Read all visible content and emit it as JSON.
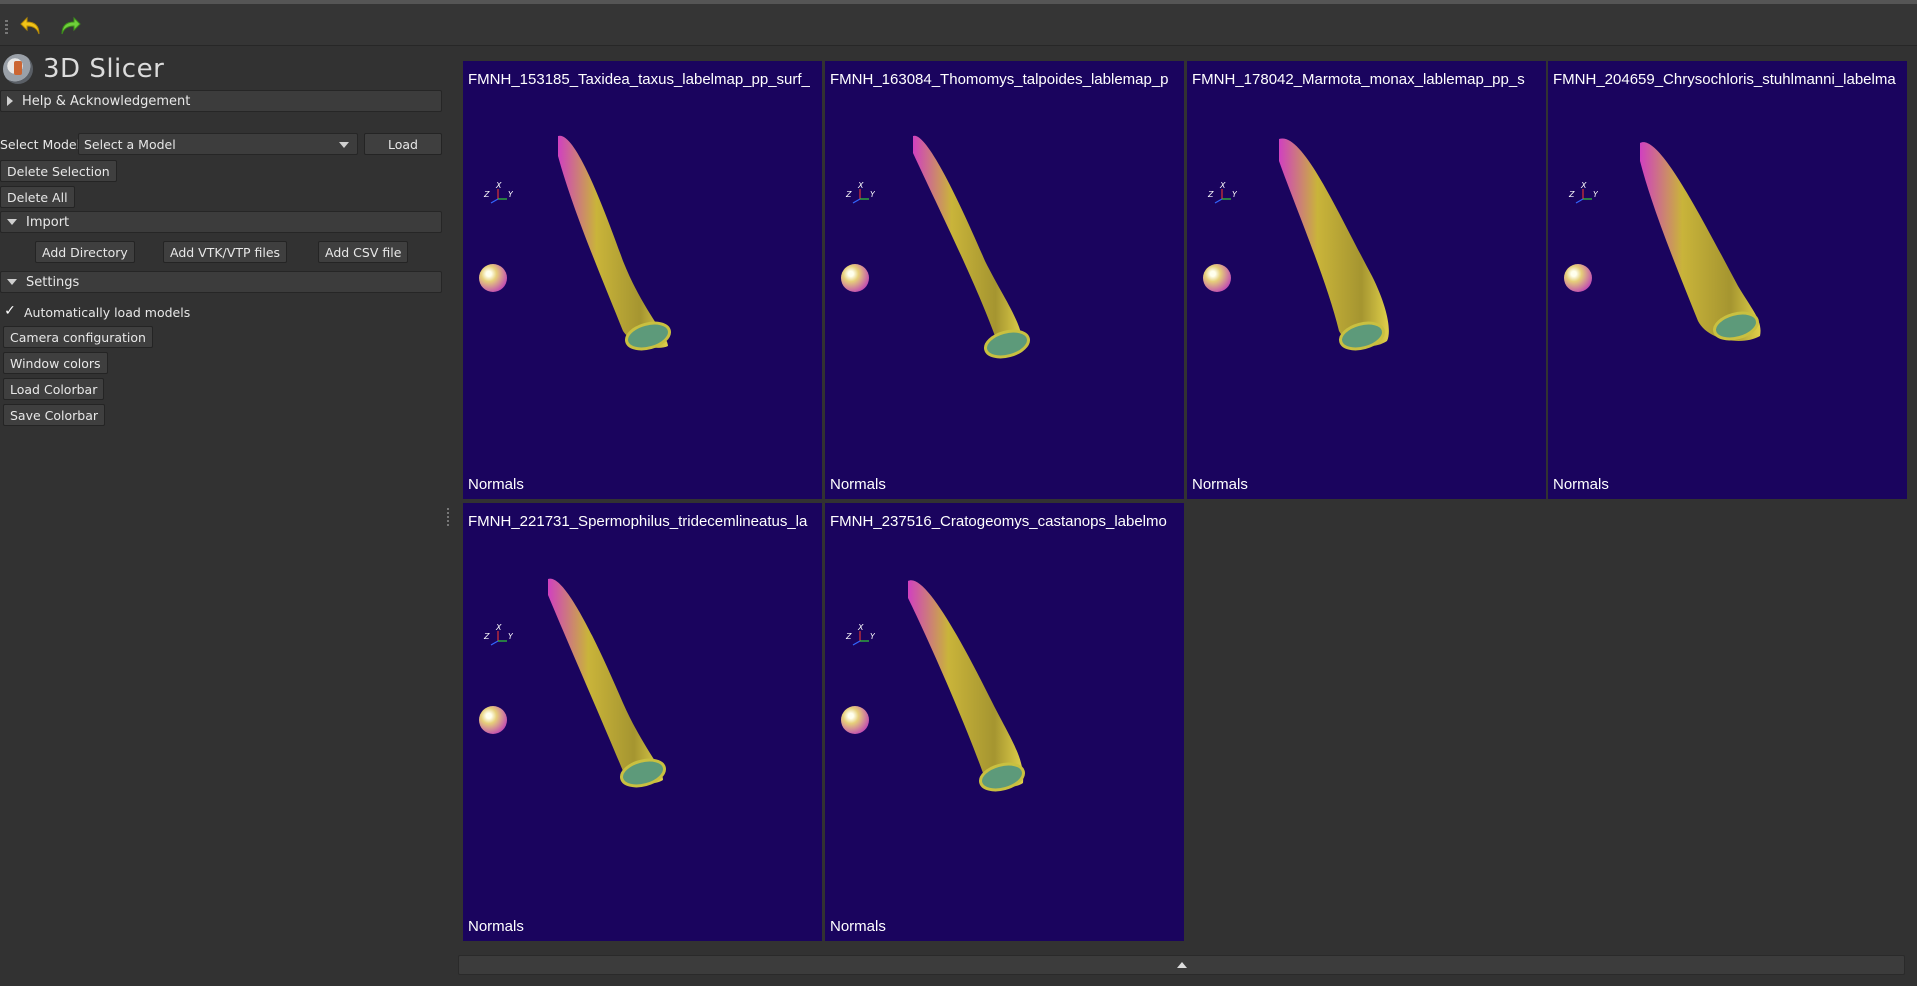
{
  "toolbar": {
    "undo_icon": "undo-arrow-icon",
    "redo_icon": "redo-arrow-icon"
  },
  "app": {
    "title": "3D Slicer"
  },
  "sections": {
    "help": "Help & Acknowledgement",
    "import": "Import",
    "settings": "Settings"
  },
  "model_select": {
    "label": "Select Model:",
    "value": "Select a Model",
    "load_label": "Load"
  },
  "buttons": {
    "delete_selection": "Delete Selection",
    "delete_all": "Delete All",
    "add_directory": "Add Directory",
    "add_vtk": "Add VTK/VTP files",
    "add_csv": "Add CSV file",
    "camera_config": "Camera configuration",
    "window_colors": "Window colors",
    "load_colorbar": "Load Colorbar",
    "save_colorbar": "Save Colorbar"
  },
  "settings": {
    "auto_load_label": "Automatically load models",
    "auto_load_checked": true,
    "check_glyph": "✓"
  },
  "views": [
    {
      "title": "FMNH_153185_Taxidea_taxus_labelmap_pp_surf_",
      "footer": "Normals"
    },
    {
      "title": "FMNH_163084_Thomomys_talpoides_lablemap_p",
      "footer": "Normals"
    },
    {
      "title": "FMNH_178042_Marmota_monax_lablemap_pp_s",
      "footer": "Normals"
    },
    {
      "title": "FMNH_204659_Chrysochloris_stuhlmanni_labelma",
      "footer": "Normals"
    },
    {
      "title": "FMNH_221731_Spermophilus_tridecemlineatus_la",
      "footer": "Normals"
    },
    {
      "title": "FMNH_237516_Cratogeomys_castanops_labelmo",
      "footer": "Normals"
    }
  ],
  "axis_labels": {
    "x": "X",
    "y": "Y",
    "z": "Z"
  },
  "colors": {
    "view_background": "#1a045e",
    "model_yellow": "#c9b43a",
    "model_magenta": "#d040c0",
    "panel_background": "#323232"
  }
}
